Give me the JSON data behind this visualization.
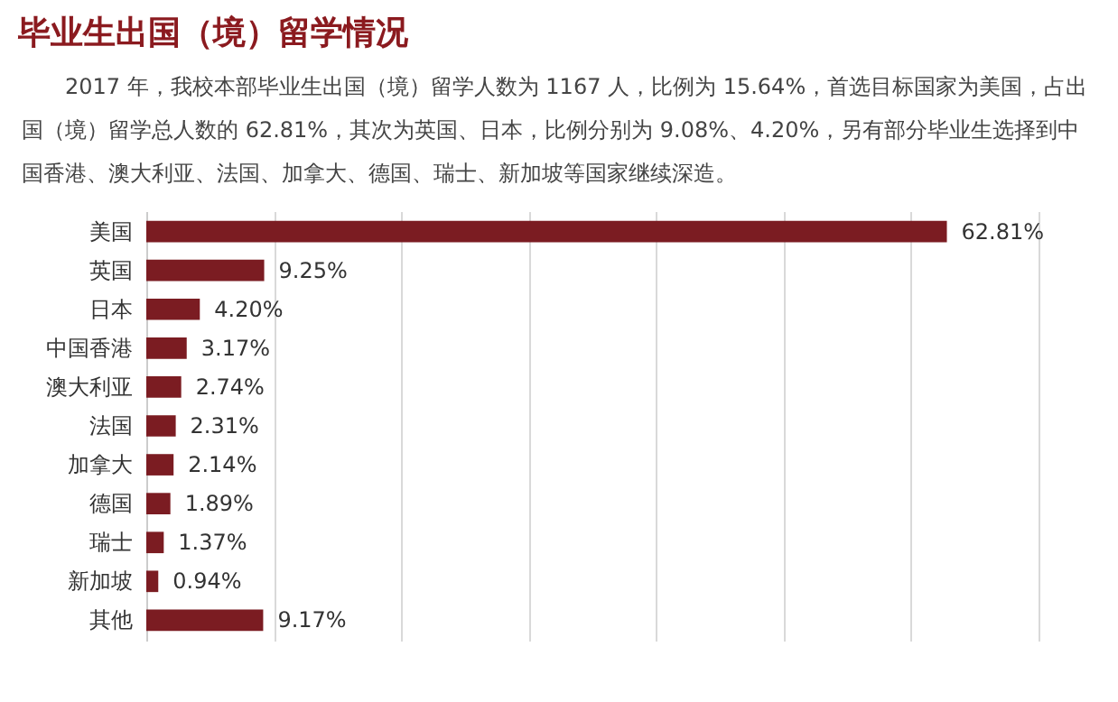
{
  "chart_data": {
    "type": "bar",
    "orientation": "horizontal",
    "title": "毕业生出国（境）留学情况",
    "subtitle": "2017 年，我校本部毕业生出国（境）留学人数为 1167 人，比例为 15.64%，首选目标国家为美国，占出国（境）留学总人数的 62.81%，其次为英国、日本，比例分别为 9.08%、4.20%，另有部分毕业生选择到中国香港、澳大利亚、法国、加拿大、德国、瑞士、新加坡等国家继续深造。",
    "categories": [
      "美国",
      "英国",
      "日本",
      "中国香港",
      "澳大利亚",
      "法国",
      "加拿大",
      "德国",
      "瑞士",
      "新加坡",
      "其他"
    ],
    "values": [
      62.81,
      9.25,
      4.2,
      3.17,
      2.74,
      2.31,
      2.14,
      1.89,
      1.37,
      0.94,
      9.17
    ],
    "value_labels": [
      "62.81%",
      "9.25%",
      "4.20%",
      "3.17%",
      "2.74%",
      "2.31%",
      "2.14%",
      "1.89%",
      "1.37%",
      "0.94%",
      "9.17%"
    ],
    "color": "#7b1c22",
    "xlim": [
      0,
      70
    ],
    "xticks": [
      {
        "value": 0,
        "label": null
      },
      {
        "value": 10,
        "label": null
      },
      {
        "value": 20,
        "label": null
      },
      {
        "value": 30,
        "label": null
      },
      {
        "value": 40,
        "label": null
      },
      {
        "value": 50,
        "label": null
      },
      {
        "value": 60,
        "label": null
      },
      {
        "value": 70,
        "label": null
      }
    ],
    "grid": "x",
    "tick_labels": "y"
  }
}
